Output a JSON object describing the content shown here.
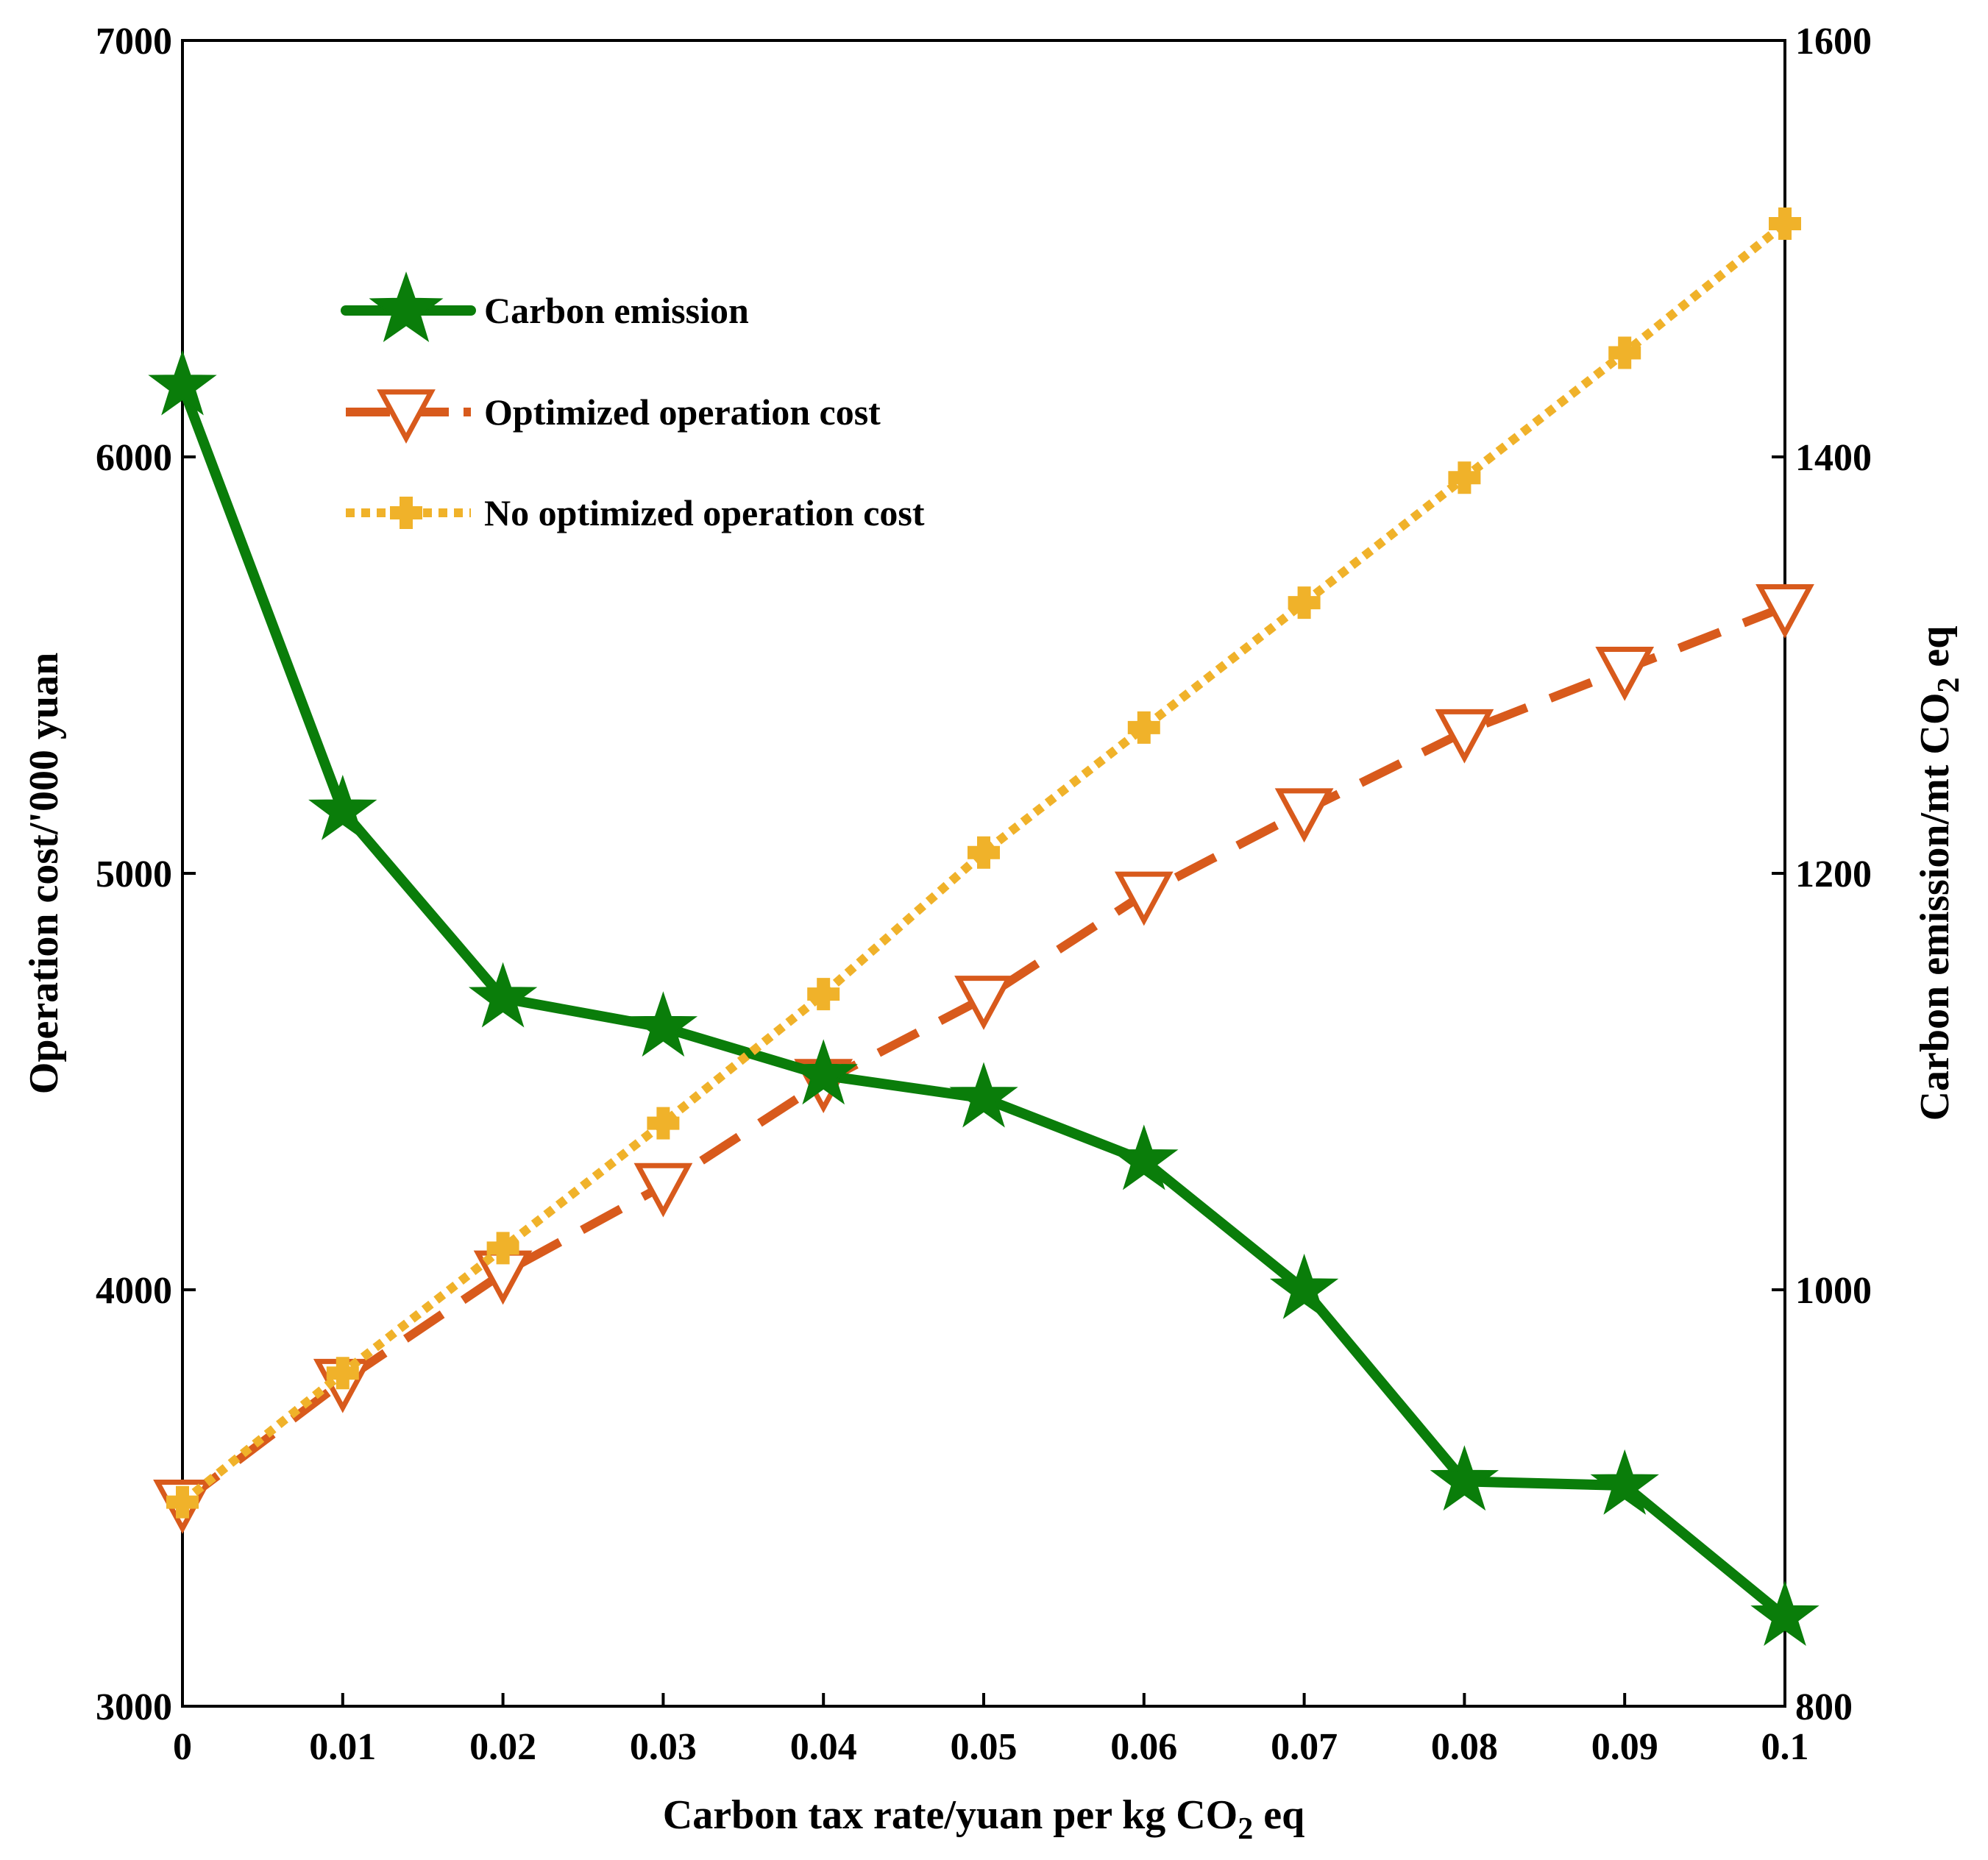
{
  "chart_data": {
    "type": "line",
    "x": [
      0,
      0.01,
      0.02,
      0.03,
      0.04,
      0.05,
      0.06,
      0.07,
      0.08,
      0.09,
      0.1
    ],
    "x_tick_labels": [
      "0",
      "0.01",
      "0.02",
      "0.03",
      "0.04",
      "0.05",
      "0.06",
      "0.07",
      "0.08",
      "0.09",
      "0.1"
    ],
    "xlim": [
      0,
      0.1
    ],
    "xlabel": {
      "main": "Carbon tax rate/yuan per kg CO",
      "sub": "2",
      "tail": " eq"
    },
    "left_axis": {
      "ylabel": "Operation cost/'000 yuan",
      "ylim": [
        3000,
        7000
      ],
      "ticks": [
        3000,
        4000,
        5000,
        6000,
        7000
      ],
      "tick_labels": [
        "3000",
        "4000",
        "5000",
        "6000",
        "7000"
      ]
    },
    "right_axis": {
      "ylabel": {
        "main": "Carbon emission/mt CO",
        "sub": "2",
        "tail": " eq"
      },
      "ylim": [
        800,
        1600
      ],
      "ticks": [
        800,
        1000,
        1200,
        1400,
        1600
      ],
      "tick_labels": [
        "800",
        "1000",
        "1200",
        "1400",
        "1600"
      ]
    },
    "series": [
      {
        "name": "Carbon emission",
        "axis": "right",
        "values": [
          1434,
          1230,
          1140,
          1126,
          1103,
          1092,
          1062,
          1000,
          908,
          906,
          843
        ],
        "color": "#0a7d0a",
        "marker": "star",
        "line": "solid"
      },
      {
        "name": "Optimized operation cost",
        "axis": "left",
        "values": [
          3490,
          3780,
          4040,
          4250,
          4500,
          4700,
          4950,
          5150,
          5340,
          5490,
          5640
        ],
        "color": "#d85a1c",
        "marker": "triangle-down",
        "line": "dashed"
      },
      {
        "name": "No optimized operation cost",
        "axis": "left",
        "values": [
          3490,
          3800,
          4100,
          4400,
          4710,
          5050,
          5350,
          5650,
          5950,
          6250,
          6560
        ],
        "color": "#f0b22a",
        "marker": "plus",
        "line": "dotted"
      }
    ],
    "legend_position": "upper-left"
  }
}
